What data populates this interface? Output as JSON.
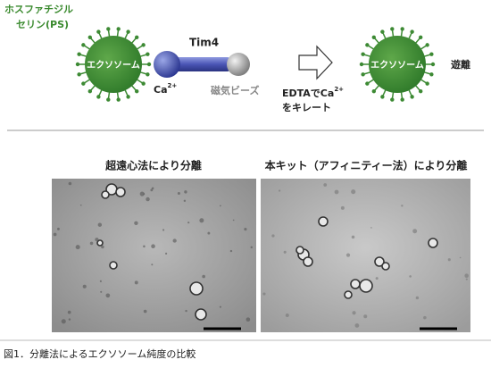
{
  "diagram": {
    "ps_label": [
      "ホスファチジル",
      "セリン(PS)"
    ],
    "left_exosome": "エクソソーム",
    "tim4": "Tim4",
    "ca": {
      "base": "Ca",
      "sup": "2+"
    },
    "beads": "磁気ビーズ",
    "edta": {
      "prefix": "EDTAでCa",
      "sup": "2+",
      "line2": "をキレート"
    },
    "right_exosome": "エクソソーム",
    "release": "遊離"
  },
  "panels": [
    {
      "title": "超遠心法により分離"
    },
    {
      "title": "本キット（アフィニティー法）により分離"
    }
  ],
  "caption": "図1．分離法によるエクソソーム純度の比較"
}
